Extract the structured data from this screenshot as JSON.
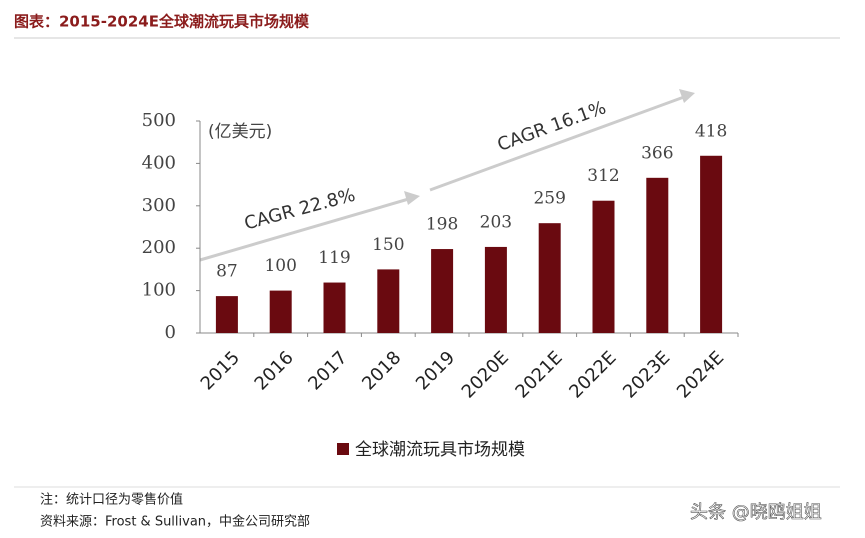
{
  "chart_data": {
    "type": "bar",
    "title": "图表：2015-2024E全球潮流玩具市场规模",
    "unit_label": "(亿美元)",
    "categories": [
      "2015",
      "2016",
      "2017",
      "2018",
      "2019",
      "2020E",
      "2021E",
      "2022E",
      "2023E",
      "2024E"
    ],
    "series": [
      {
        "name": "全球潮流玩具市场规模",
        "color": "#6a0a10",
        "values": [
          87,
          100,
          119,
          150,
          198,
          203,
          259,
          312,
          366,
          418
        ]
      }
    ],
    "ylim": [
      0,
      500
    ],
    "yticks": [
      0,
      100,
      200,
      300,
      400,
      500
    ],
    "annotations": [
      "CAGR 22.8%",
      "CAGR 16.1%"
    ],
    "notes": [
      "注：统计口径为零售价值",
      "资料来源：Frost & Sullivan，中金公司研究部"
    ]
  },
  "watermark": "头条 @晓鸥姐姐"
}
